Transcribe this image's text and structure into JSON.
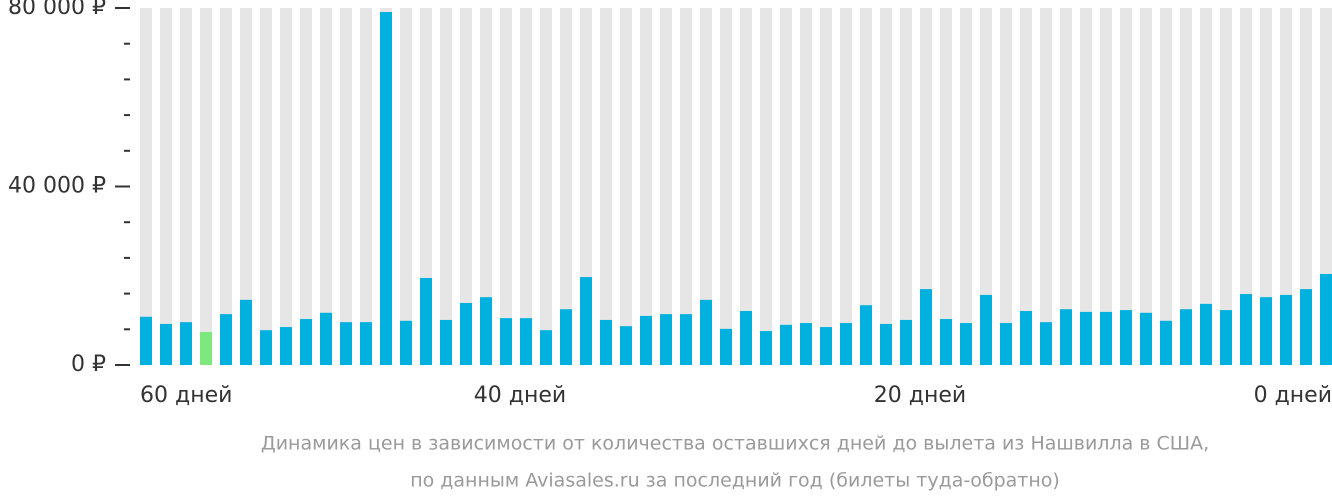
{
  "chart_data": {
    "type": "bar",
    "caption": [
      "Динамика цен в зависимости от количества оставшихся дней до вылета из Нашвилла в США,",
      "по данным Aviasales.ru за последний год (билеты туда-обратно)"
    ],
    "categories": [
      "60 дней",
      null,
      null,
      null,
      null,
      null,
      null,
      null,
      null,
      null,
      null,
      null,
      null,
      null,
      null,
      null,
      null,
      null,
      null,
      "40 дней",
      null,
      null,
      null,
      null,
      null,
      null,
      null,
      null,
      null,
      null,
      null,
      null,
      null,
      null,
      null,
      null,
      null,
      null,
      null,
      "20 дней",
      null,
      null,
      null,
      null,
      null,
      null,
      null,
      null,
      null,
      null,
      null,
      null,
      null,
      null,
      null,
      null,
      null,
      null,
      null,
      "0 дней"
    ],
    "values": [
      10800,
      9200,
      9600,
      7400,
      11400,
      14600,
      7800,
      8500,
      10300,
      11700,
      9600,
      9600,
      79100,
      9900,
      19500,
      10100,
      13900,
      15200,
      10500,
      10500,
      7800,
      12500,
      19700,
      10100,
      8700,
      11000,
      11400,
      11400,
      14600,
      8100,
      12100,
      7600,
      9000,
      9400,
      8500,
      9400,
      13400,
      9200,
      10100,
      17000,
      10300,
      9400,
      15700,
      9400,
      12100,
      9600,
      12500,
      11900,
      11900,
      12300,
      11700,
      9900,
      12500,
      13700,
      12300,
      15900,
      15200,
      15700,
      17000,
      20400
    ],
    "color": "#00b0de",
    "highlight_index": 3,
    "highlight_color": "#7ee87e",
    "background_color": "#e6e6e6",
    "ylim": [
      0,
      80000
    ],
    "yticks": [
      {
        "value": 0,
        "label": "0 ₽"
      },
      {
        "value": 40000,
        "label": "40 000 ₽"
      },
      {
        "value": 80000,
        "label": "80 000 ₽"
      }
    ],
    "minor_yticks": [
      8000,
      16000,
      24000,
      32000,
      48000,
      56000,
      64000,
      72000
    ]
  }
}
